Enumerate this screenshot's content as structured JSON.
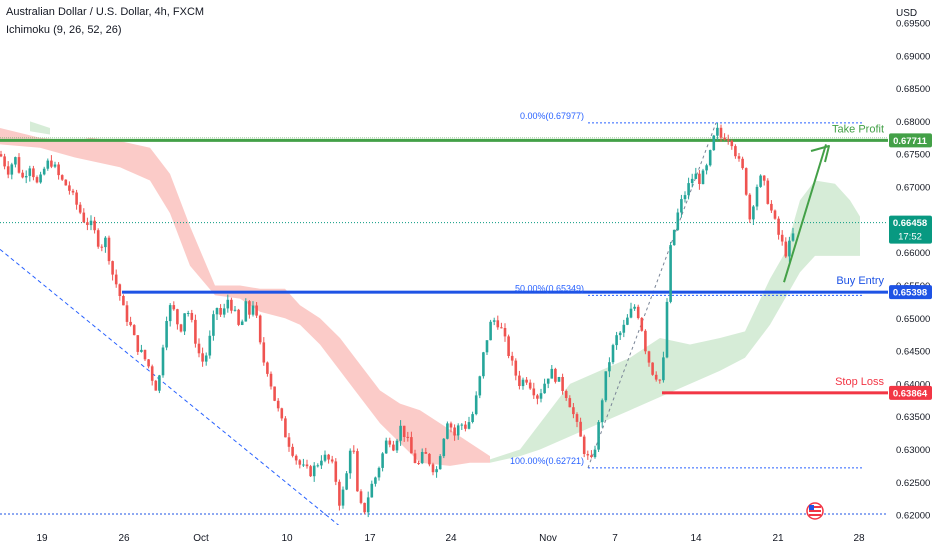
{
  "header": {
    "title": "Australian Dollar / U.S. Dollar, 4h, FXCM",
    "indicator": "Ichimoku (9, 26, 52, 26)"
  },
  "chart_data": {
    "type": "candlestick",
    "currency_label": "USD",
    "ylim": [
      0.6185,
      0.6985
    ],
    "y_ticks": [
      "0.69500",
      "0.69000",
      "0.68500",
      "0.68000",
      "0.67500",
      "0.67000",
      "0.66500",
      "0.66000",
      "0.65500",
      "0.65000",
      "0.64500",
      "0.64000",
      "0.63500",
      "0.63000",
      "0.62500",
      "0.62000"
    ],
    "x_ticks": [
      "19",
      "26",
      "Oct",
      "10",
      "17",
      "24",
      "Nov",
      "7",
      "14",
      "21",
      "28"
    ],
    "colors": {
      "up": "#26a69a",
      "down": "#ef5350",
      "cloud_bear": "#f9b9b6",
      "cloud_bull": "#c8e6c9",
      "take_profit": "#43a047",
      "entry": "#1e53e5",
      "stop": "#f23645",
      "fib": "#2962ff",
      "current": "#089981",
      "dotted": "#1e53e5"
    },
    "levels": [
      {
        "name": "Take Profit",
        "value": 0.67711,
        "label": "0.67711"
      },
      {
        "name": "Buy Entry",
        "value": 0.65398,
        "label": "0.65398"
      },
      {
        "name": "Stop Loss",
        "value": 0.63864,
        "label": "0.63864"
      }
    ],
    "fib": [
      {
        "label": "0.00%(0.67977)",
        "value": 0.67977
      },
      {
        "label": "50.00%(0.65349)",
        "value": 0.65349
      },
      {
        "label": "100.00%(0.62721)",
        "value": 0.62721
      }
    ],
    "current": {
      "value": 0.66458,
      "label": "0.66458",
      "countdown": "17:52"
    },
    "path": [
      [
        0,
        0.675
      ],
      [
        8,
        0.6725
      ],
      [
        15,
        0.6745
      ],
      [
        22,
        0.6712
      ],
      [
        30,
        0.6735
      ],
      [
        38,
        0.67
      ],
      [
        46,
        0.6735
      ],
      [
        52,
        0.6738
      ],
      [
        60,
        0.6712
      ],
      [
        68,
        0.67
      ],
      [
        76,
        0.6675
      ],
      [
        84,
        0.665
      ],
      [
        92,
        0.664
      ],
      [
        100,
        0.661
      ],
      [
        106,
        0.662
      ],
      [
        112,
        0.657
      ],
      [
        118,
        0.6545
      ],
      [
        124,
        0.651
      ],
      [
        130,
        0.649
      ],
      [
        136,
        0.646
      ],
      [
        142,
        0.6445
      ],
      [
        148,
        0.643
      ],
      [
        154,
        0.64
      ],
      [
        158,
        0.639
      ],
      [
        162,
        0.645
      ],
      [
        168,
        0.652
      ],
      [
        174,
        0.651
      ],
      [
        180,
        0.648
      ],
      [
        186,
        0.652
      ],
      [
        192,
        0.649
      ],
      [
        198,
        0.645
      ],
      [
        204,
        0.643
      ],
      [
        210,
        0.647
      ],
      [
        216,
        0.652
      ],
      [
        222,
        0.65
      ],
      [
        228,
        0.653
      ],
      [
        234,
        0.651
      ],
      [
        240,
        0.648
      ],
      [
        246,
        0.652
      ],
      [
        250,
        0.6505
      ],
      [
        254,
        0.653
      ],
      [
        258,
        0.648
      ],
      [
        262,
        0.644
      ],
      [
        268,
        0.642
      ],
      [
        274,
        0.638
      ],
      [
        280,
        0.635
      ],
      [
        286,
        0.632
      ],
      [
        292,
        0.63
      ],
      [
        298,
        0.628
      ],
      [
        304,
        0.627
      ],
      [
        310,
        0.6265
      ],
      [
        316,
        0.6275
      ],
      [
        322,
        0.629
      ],
      [
        328,
        0.6285
      ],
      [
        334,
        0.627
      ],
      [
        340,
        0.6215
      ],
      [
        346,
        0.6255
      ],
      [
        352,
        0.6325
      ],
      [
        358,
        0.622
      ],
      [
        364,
        0.6205
      ],
      [
        370,
        0.624
      ],
      [
        376,
        0.626
      ],
      [
        382,
        0.629
      ],
      [
        388,
        0.632
      ],
      [
        394,
        0.6305
      ],
      [
        400,
        0.6335
      ],
      [
        406,
        0.632
      ],
      [
        412,
        0.629
      ],
      [
        418,
        0.6275
      ],
      [
        424,
        0.6295
      ],
      [
        430,
        0.628
      ],
      [
        436,
        0.6265
      ],
      [
        442,
        0.631
      ],
      [
        448,
        0.635
      ],
      [
        454,
        0.632
      ],
      [
        460,
        0.634
      ],
      [
        466,
        0.6335
      ],
      [
        472,
        0.635
      ],
      [
        478,
        0.639
      ],
      [
        484,
        0.645
      ],
      [
        490,
        0.649
      ],
      [
        496,
        0.65
      ],
      [
        502,
        0.648
      ],
      [
        508,
        0.645
      ],
      [
        514,
        0.642
      ],
      [
        520,
        0.64
      ],
      [
        526,
        0.641
      ],
      [
        532,
        0.6395
      ],
      [
        538,
        0.638
      ],
      [
        544,
        0.64
      ],
      [
        550,
        0.642
      ],
      [
        556,
        0.641
      ],
      [
        562,
        0.6395
      ],
      [
        568,
        0.638
      ],
      [
        574,
        0.635
      ],
      [
        580,
        0.632
      ],
      [
        586,
        0.629
      ],
      [
        592,
        0.628
      ],
      [
        598,
        0.633
      ],
      [
        604,
        0.64
      ],
      [
        610,
        0.644
      ],
      [
        616,
        0.647
      ],
      [
        622,
        0.648
      ],
      [
        628,
        0.65
      ],
      [
        634,
        0.652
      ],
      [
        640,
        0.65
      ],
      [
        646,
        0.645
      ],
      [
        652,
        0.642
      ],
      [
        658,
        0.641
      ],
      [
        662,
        0.64
      ],
      [
        666,
        0.65
      ],
      [
        670,
        0.66
      ],
      [
        676,
        0.665
      ],
      [
        682,
        0.668
      ],
      [
        688,
        0.67
      ],
      [
        694,
        0.672
      ],
      [
        700,
        0.671
      ],
      [
        706,
        0.6725
      ],
      [
        712,
        0.676
      ],
      [
        716,
        0.679
      ],
      [
        720,
        0.6775
      ],
      [
        726,
        0.678
      ],
      [
        732,
        0.677
      ],
      [
        738,
        0.674
      ],
      [
        744,
        0.672
      ],
      [
        750,
        0.665
      ],
      [
        756,
        0.67
      ],
      [
        762,
        0.6715
      ],
      [
        768,
        0.668
      ],
      [
        774,
        0.665
      ],
      [
        780,
        0.662
      ],
      [
        786,
        0.66
      ],
      [
        792,
        0.662
      ],
      [
        796,
        0.6646
      ]
    ],
    "cloud_bear": [
      [
        0,
        0.679,
        0.6765
      ],
      [
        40,
        0.6775,
        0.676
      ],
      [
        75,
        0.677,
        0.6745
      ],
      [
        90,
        0.6775,
        0.674
      ],
      [
        120,
        0.677,
        0.673
      ],
      [
        150,
        0.676,
        0.671
      ],
      [
        170,
        0.672,
        0.666
      ],
      [
        190,
        0.664,
        0.658
      ],
      [
        215,
        0.655,
        0.6535
      ],
      [
        240,
        0.655,
        0.653
      ],
      [
        260,
        0.6545,
        0.651
      ],
      [
        285,
        0.6545,
        0.65
      ],
      [
        300,
        0.652,
        0.649
      ],
      [
        320,
        0.65,
        0.646
      ],
      [
        340,
        0.647,
        0.642
      ],
      [
        355,
        0.644,
        0.639
      ],
      [
        380,
        0.639,
        0.634
      ],
      [
        400,
        0.637,
        0.631
      ],
      [
        420,
        0.636,
        0.628
      ],
      [
        450,
        0.633,
        0.6275
      ],
      [
        470,
        0.631,
        0.628
      ],
      [
        490,
        0.629,
        0.628
      ]
    ],
    "cloud_bull": [
      [
        490,
        0.6285,
        0.628
      ],
      [
        520,
        0.63,
        0.629
      ],
      [
        540,
        0.634,
        0.63
      ],
      [
        570,
        0.64,
        0.632
      ],
      [
        600,
        0.642,
        0.634
      ],
      [
        630,
        0.644,
        0.636
      ],
      [
        660,
        0.647,
        0.638
      ],
      [
        690,
        0.646,
        0.64
      ],
      [
        720,
        0.647,
        0.642
      ],
      [
        745,
        0.648,
        0.644
      ],
      [
        770,
        0.656,
        0.649
      ],
      [
        785,
        0.66,
        0.653
      ],
      [
        800,
        0.668,
        0.657
      ],
      [
        815,
        0.671,
        0.6595
      ],
      [
        835,
        0.6705,
        0.6595
      ],
      [
        850,
        0.668,
        0.6595
      ],
      [
        860,
        0.6655,
        0.6595
      ]
    ],
    "cloud_bull_early": [
      [
        30,
        0.68,
        0.6785
      ],
      [
        50,
        0.679,
        0.678
      ]
    ]
  }
}
